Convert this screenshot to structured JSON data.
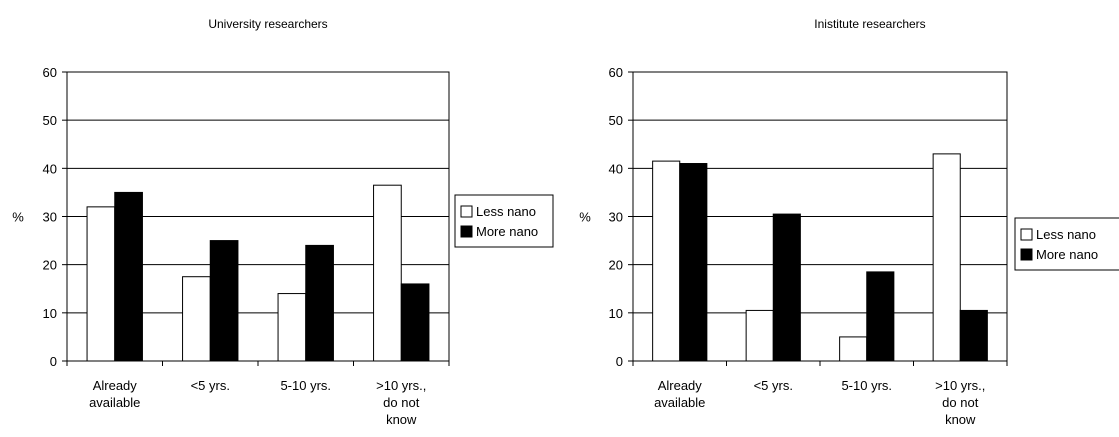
{
  "chart_data": [
    {
      "type": "bar",
      "title": "University researchers",
      "ylabel": "%",
      "xlabel": "",
      "ylim": [
        0,
        60
      ],
      "yticks": [
        0,
        10,
        20,
        30,
        40,
        50,
        60
      ],
      "categories": [
        [
          "Already",
          "available"
        ],
        [
          "<5 yrs."
        ],
        [
          "5-10 yrs."
        ],
        [
          ">10 yrs.,",
          "do not",
          "know"
        ]
      ],
      "series": [
        {
          "name": "Less nano",
          "color": "#ffffff",
          "values": [
            32,
            17.5,
            14,
            36.5
          ]
        },
        {
          "name": "More nano",
          "color": "#000000",
          "values": [
            35,
            25,
            24,
            16
          ]
        }
      ],
      "grid": true,
      "legend": "right"
    },
    {
      "type": "bar",
      "title": "Inistitute researchers",
      "ylabel": "%",
      "xlabel": "",
      "ylim": [
        0,
        60
      ],
      "yticks": [
        0,
        10,
        20,
        30,
        40,
        50,
        60
      ],
      "categories": [
        [
          "Already",
          "available"
        ],
        [
          "<5 yrs."
        ],
        [
          "5-10 yrs."
        ],
        [
          ">10 yrs.,",
          "do not",
          "know"
        ]
      ],
      "series": [
        {
          "name": "Less nano",
          "color": "#ffffff",
          "values": [
            41.5,
            10.5,
            5,
            43
          ]
        },
        {
          "name": "More nano",
          "color": "#000000",
          "values": [
            41,
            30.5,
            18.5,
            10.5
          ]
        }
      ],
      "grid": true,
      "legend": "right"
    }
  ]
}
